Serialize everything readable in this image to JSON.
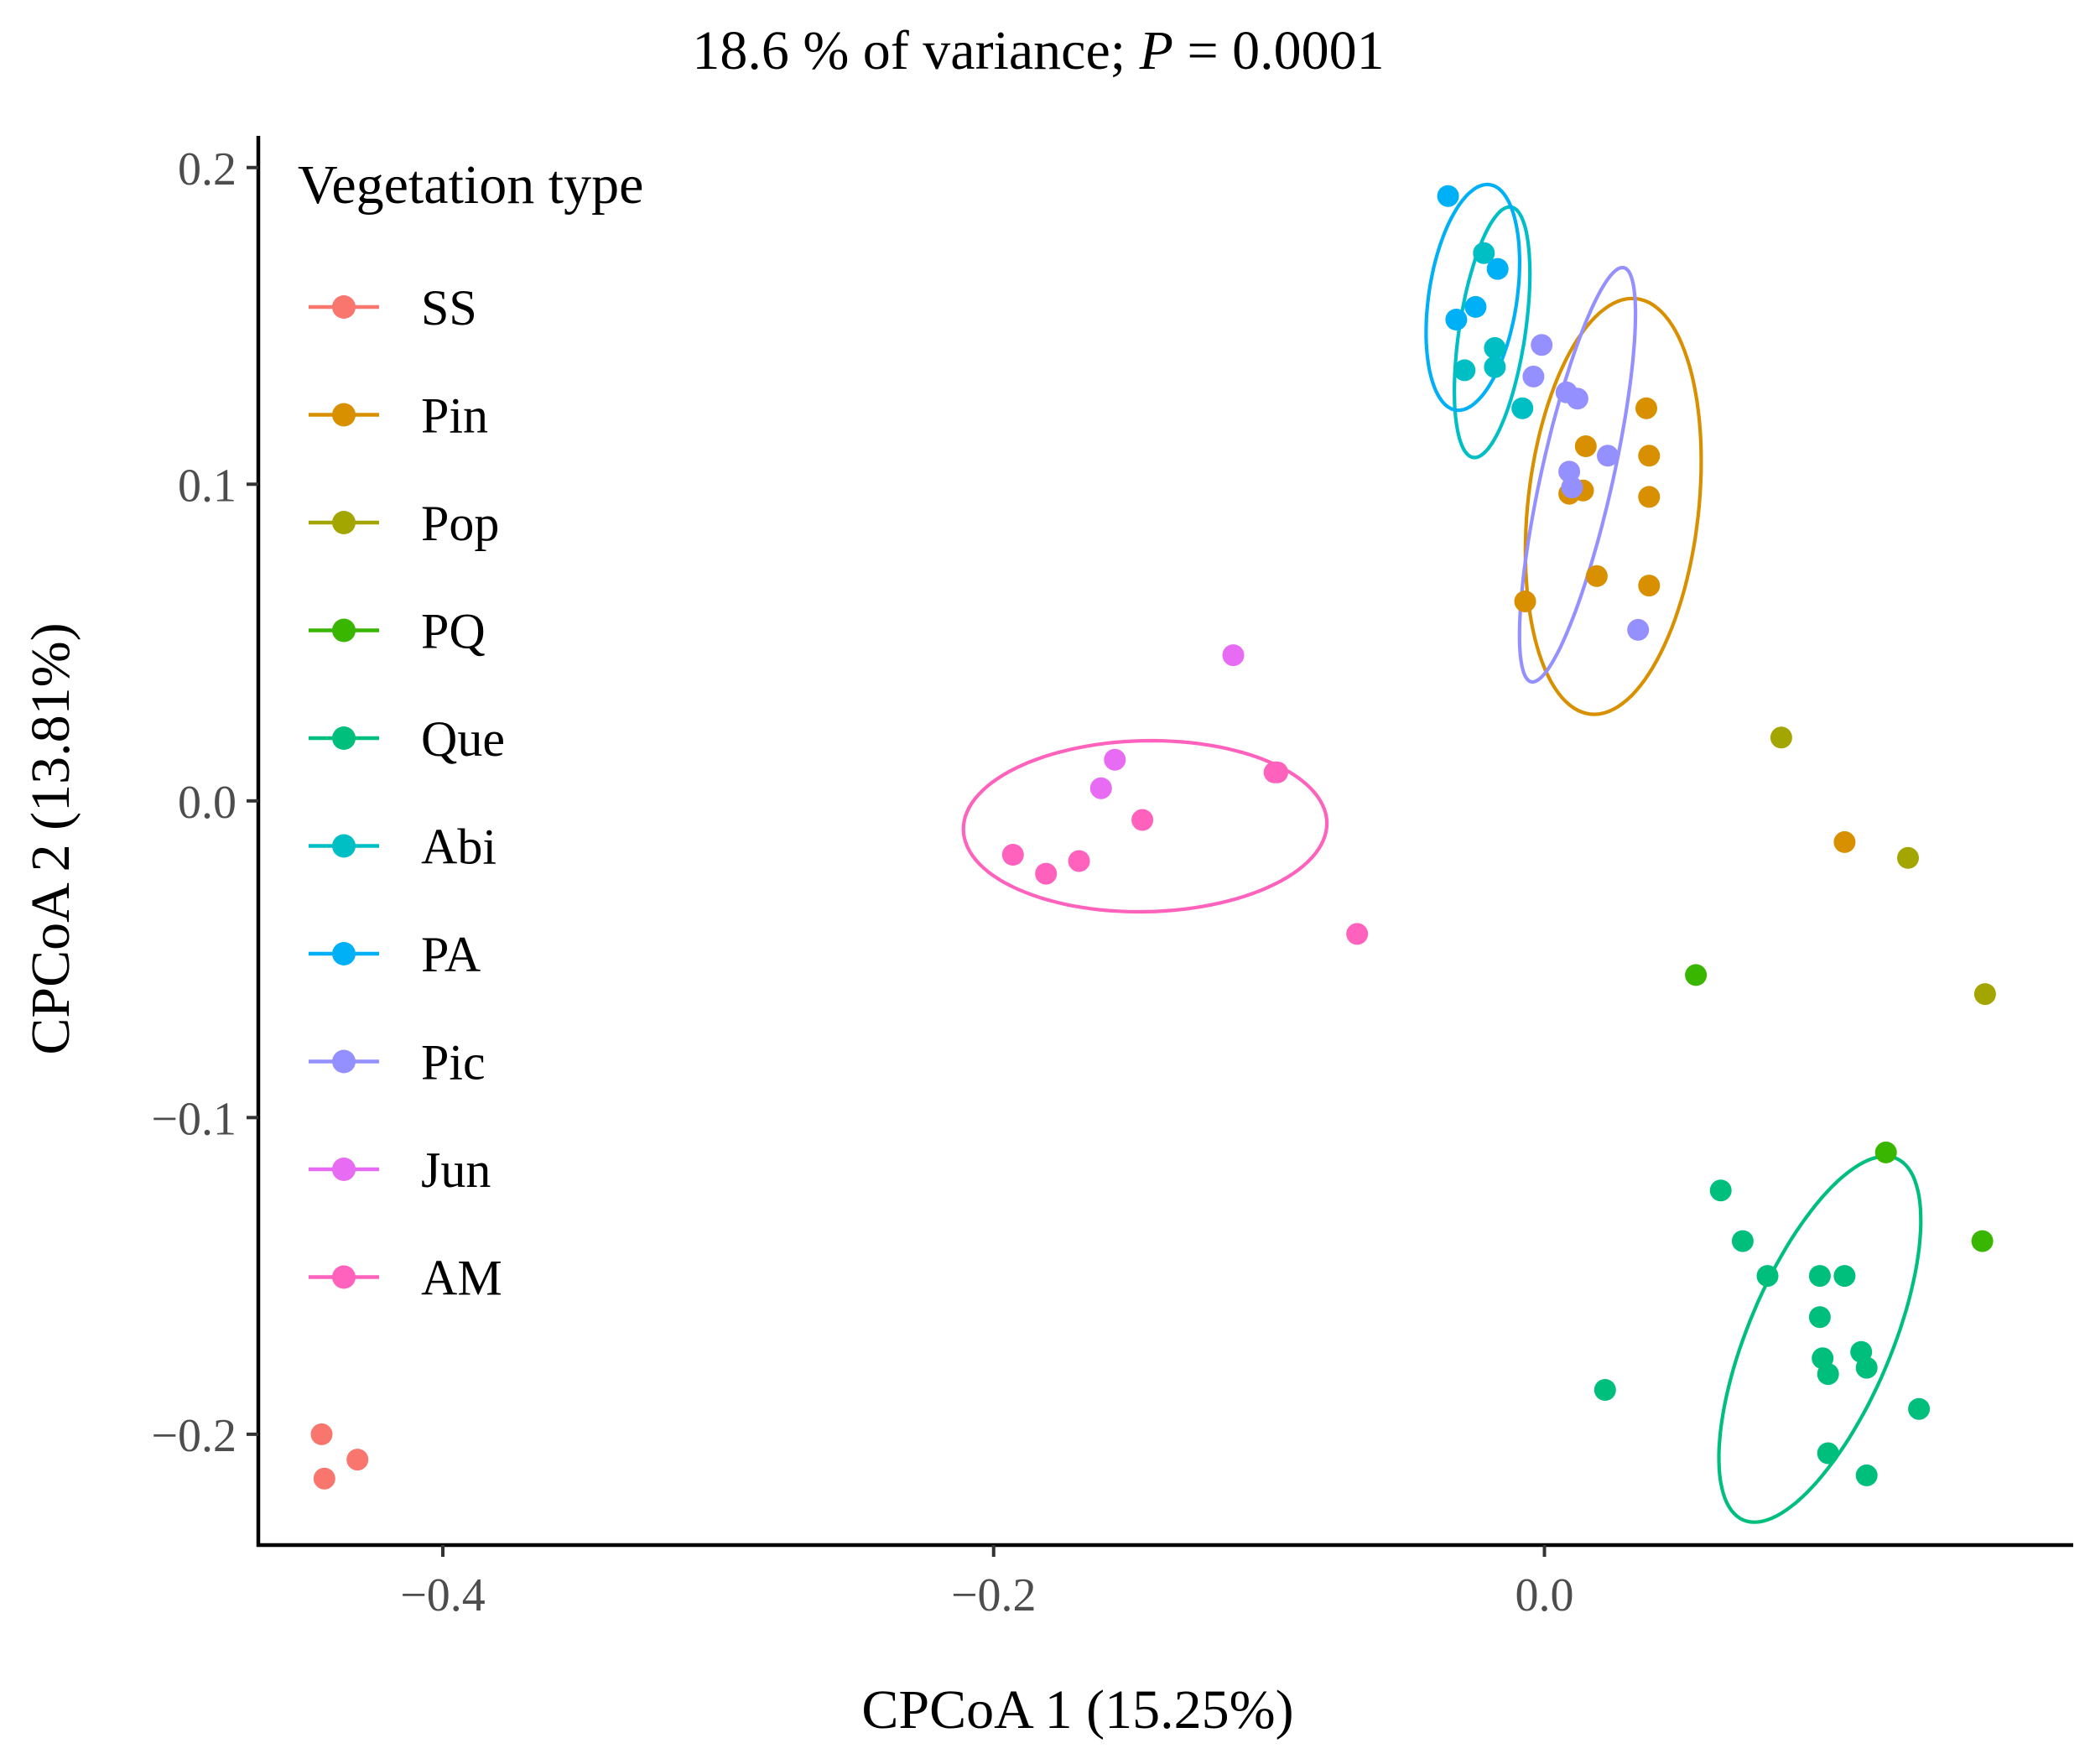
{
  "chart_data": {
    "type": "scatter",
    "title": {
      "prefix": "18.6 % of variance; ",
      "italic": "P",
      "suffix": " = 0.0001"
    },
    "xlabel": "CPCoA 1 (15.25%)",
    "ylabel": "CPCoA 2 (13.81%)",
    "xlim": [
      -0.467,
      0.192
    ],
    "ylim": [
      -0.235,
      0.21
    ],
    "x_ticks": [
      {
        "value": -0.4,
        "label": "−0.4"
      },
      {
        "value": -0.2,
        "label": "−0.2"
      },
      {
        "value": 0.0,
        "label": "0.0"
      }
    ],
    "y_ticks": [
      {
        "value": 0.2,
        "label": "0.2"
      },
      {
        "value": 0.1,
        "label": "0.1"
      },
      {
        "value": 0.0,
        "label": "0.0"
      },
      {
        "value": -0.1,
        "label": "−0.1"
      },
      {
        "value": -0.2,
        "label": "−0.2"
      }
    ],
    "grid": false,
    "legend": {
      "title": "Vegetation type",
      "position": "top-left"
    },
    "series": [
      {
        "name": "SS",
        "color": "#F8766D",
        "points": [
          [
            -0.444,
            -0.2
          ],
          [
            -0.443,
            -0.214
          ],
          [
            -0.431,
            -0.208
          ]
        ]
      },
      {
        "name": "Pin",
        "color": "#D89000",
        "points": [
          [
            0.037,
            0.124
          ],
          [
            0.015,
            0.112
          ],
          [
            0.038,
            0.109
          ],
          [
            0.009,
            0.097
          ],
          [
            0.014,
            0.098
          ],
          [
            0.038,
            0.096
          ],
          [
            0.019,
            0.071
          ],
          [
            0.038,
            0.068
          ],
          [
            -0.007,
            0.063
          ],
          [
            0.109,
            -0.013
          ]
        ],
        "ellipse": {
          "cx": 0.025,
          "cy": 0.093,
          "rx": 0.031,
          "ry": 0.066,
          "angle": 0.11
        }
      },
      {
        "name": "Pop",
        "color": "#A3A500",
        "points": [
          [
            0.086,
            0.02
          ],
          [
            0.132,
            -0.018
          ],
          [
            0.16,
            -0.061
          ]
        ]
      },
      {
        "name": "PQ",
        "color": "#39B600",
        "points": [
          [
            0.055,
            -0.055
          ],
          [
            0.124,
            -0.111
          ],
          [
            0.159,
            -0.139
          ]
        ]
      },
      {
        "name": "Que",
        "color": "#00BF7D",
        "points": [
          [
            0.064,
            -0.123
          ],
          [
            0.072,
            -0.139
          ],
          [
            0.081,
            -0.15
          ],
          [
            0.1,
            -0.15
          ],
          [
            0.109,
            -0.15
          ],
          [
            0.1,
            -0.163
          ],
          [
            0.101,
            -0.176
          ],
          [
            0.103,
            -0.181
          ],
          [
            0.115,
            -0.174
          ],
          [
            0.117,
            -0.179
          ],
          [
            0.136,
            -0.192
          ],
          [
            0.022,
            -0.186
          ],
          [
            0.103,
            -0.206
          ],
          [
            0.117,
            -0.213
          ]
        ],
        "ellipse": {
          "cx": 0.1,
          "cy": -0.17,
          "rx": 0.026,
          "ry": 0.062,
          "angle": 0.4
        }
      },
      {
        "name": "Abi",
        "color": "#00BFC4",
        "points": [
          [
            -0.022,
            0.173
          ],
          [
            -0.018,
            0.143
          ],
          [
            -0.018,
            0.137
          ],
          [
            -0.029,
            0.136
          ],
          [
            -0.008,
            0.124
          ]
        ],
        "ellipse": {
          "cx": -0.019,
          "cy": 0.148,
          "rx": 0.012,
          "ry": 0.04,
          "angle": 0.15
        }
      },
      {
        "name": "PA",
        "color": "#00B0F6",
        "points": [
          [
            -0.035,
            0.191
          ],
          [
            -0.017,
            0.168
          ],
          [
            -0.025,
            0.156
          ],
          [
            -0.032,
            0.152
          ]
        ],
        "ellipse": {
          "cx": -0.026,
          "cy": 0.159,
          "rx": 0.016,
          "ry": 0.036,
          "angle": 0.15
        }
      },
      {
        "name": "Pic",
        "color": "#9590FF",
        "points": [
          [
            -0.001,
            0.144
          ],
          [
            -0.004,
            0.134
          ],
          [
            0.008,
            0.129
          ],
          [
            0.012,
            0.127
          ],
          [
            0.023,
            0.109
          ],
          [
            0.009,
            0.104
          ],
          [
            0.01,
            0.099
          ],
          [
            0.034,
            0.054
          ]
        ],
        "ellipse": {
          "cx": 0.012,
          "cy": 0.103,
          "rx": 0.013,
          "ry": 0.067,
          "angle": 0.22
        }
      },
      {
        "name": "Jun",
        "color": "#E76BF3",
        "points": [
          [
            -0.113,
            0.046
          ],
          [
            -0.156,
            0.013
          ],
          [
            -0.161,
            0.004
          ]
        ]
      },
      {
        "name": "AM",
        "color": "#FF62BC",
        "points": [
          [
            -0.146,
            -0.006
          ],
          [
            -0.098,
            0.009
          ],
          [
            -0.097,
            0.009
          ],
          [
            -0.193,
            -0.017
          ],
          [
            -0.169,
            -0.019
          ],
          [
            -0.181,
            -0.023
          ],
          [
            -0.068,
            -0.042
          ]
        ],
        "ellipse": {
          "cx": -0.145,
          "cy": -0.008,
          "rx": 0.066,
          "ry": 0.027,
          "angle": -0.02
        }
      }
    ]
  }
}
